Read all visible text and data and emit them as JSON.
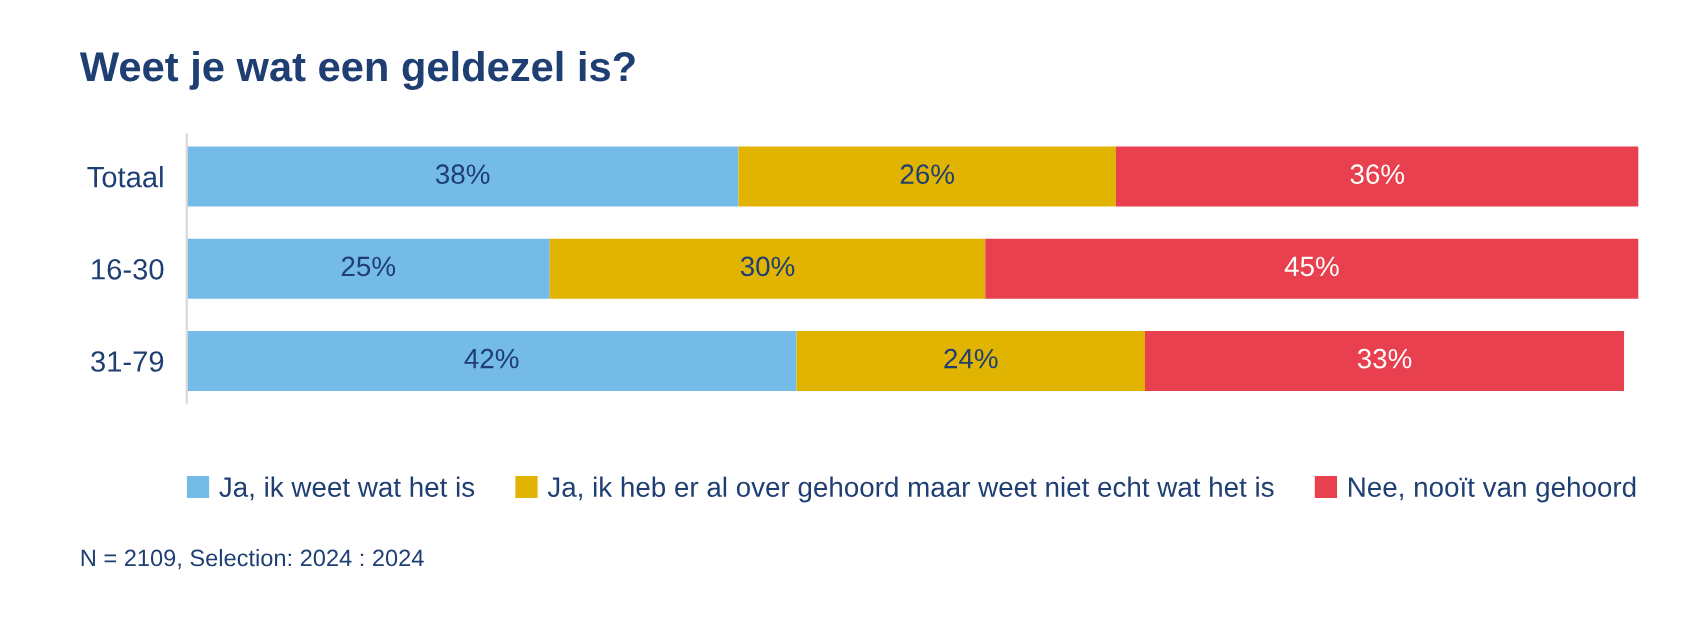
{
  "chart_data": {
    "type": "bar",
    "orientation": "horizontal",
    "stacked": true,
    "title": "Weet je wat een geldezel is?",
    "categories": [
      "Totaal",
      "16-30",
      "31-79"
    ],
    "series": [
      {
        "name": "Ja, ik weet wat het is",
        "color": "#74bbe8",
        "values": [
          38,
          25,
          42
        ],
        "value_labels": [
          "38%",
          "25%",
          "42%"
        ]
      },
      {
        "name": "Ja, ik heb er al over gehoord maar weet niet echt wat het is",
        "color": "#e0b400",
        "values": [
          26,
          30,
          24
        ],
        "value_labels": [
          "26%",
          "30%",
          "24%"
        ]
      },
      {
        "name": "Nee, nooït van gehoord",
        "color": "#e8404f",
        "values": [
          36,
          45,
          33
        ],
        "value_labels": [
          "36%",
          "45%",
          "33%"
        ]
      }
    ],
    "legend": "bottom",
    "grid": false,
    "tick_labels": "y",
    "annotations": [
      "N = 2109, Selection: 2024 : 2024"
    ]
  }
}
